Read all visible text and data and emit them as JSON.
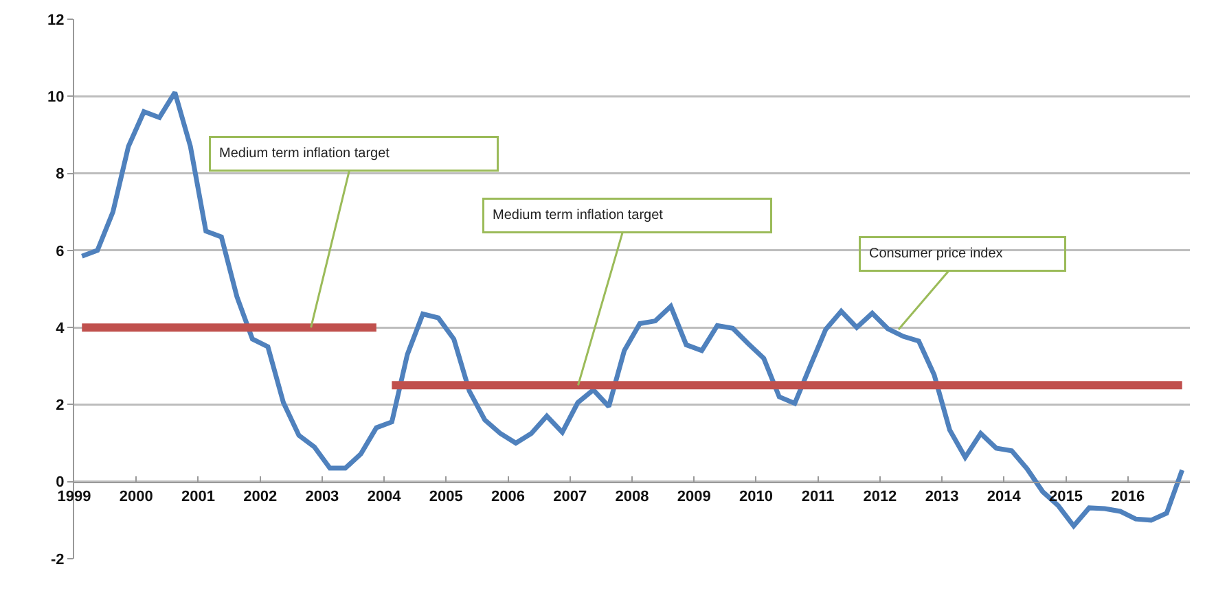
{
  "chart_data": {
    "type": "line",
    "xlim": [
      1999,
      2017
    ],
    "xticks": [
      1999,
      2000,
      2001,
      2002,
      2003,
      2004,
      2005,
      2006,
      2007,
      2008,
      2009,
      2010,
      2011,
      2012,
      2013,
      2014,
      2015,
      2016
    ],
    "ylim": [
      -2,
      12
    ],
    "yticks": [
      -2,
      0,
      2,
      4,
      6,
      8,
      10,
      12
    ],
    "grid": "y",
    "marker": "none",
    "line_style": "solid",
    "series": [
      {
        "color": "#4f81bd",
        "x": [
          1999.125,
          1999.375,
          1999.625,
          1999.875,
          2000.125,
          2000.375,
          2000.625,
          2000.875,
          2001.125,
          2001.375,
          2001.625,
          2001.875,
          2002.125,
          2002.375,
          2002.625,
          2002.875,
          2003.125,
          2003.375,
          2003.625,
          2003.875,
          2004.125,
          2004.375,
          2004.625,
          2004.875,
          2005.125,
          2005.375,
          2005.625,
          2005.875,
          2006.125,
          2006.375,
          2006.625,
          2006.875,
          2007.125,
          2007.375,
          2007.625,
          2007.875,
          2008.125,
          2008.375,
          2008.625,
          2008.875,
          2009.125,
          2009.375,
          2009.625,
          2009.875,
          2010.125,
          2010.375,
          2010.625,
          2010.875,
          2011.125,
          2011.375,
          2011.625,
          2011.875,
          2012.125,
          2012.375,
          2012.625,
          2012.875,
          2013.125,
          2013.375,
          2013.625,
          2013.875,
          2014.125,
          2014.375,
          2014.625,
          2014.875,
          2015.125,
          2015.375,
          2015.625,
          2015.875,
          2016.125,
          2016.375,
          2016.625,
          2016.875
        ],
        "values": [
          5.85,
          6.0,
          7.0,
          8.7,
          9.6,
          9.45,
          10.1,
          8.7,
          6.5,
          6.35,
          4.8,
          3.7,
          3.5,
          2.05,
          1.2,
          0.9,
          0.35,
          0.35,
          0.72,
          1.4,
          1.55,
          3.3,
          4.35,
          4.25,
          3.7,
          2.35,
          1.6,
          1.25,
          1.0,
          1.25,
          1.7,
          1.28,
          2.05,
          2.38,
          1.95,
          3.4,
          4.1,
          4.17,
          4.55,
          3.55,
          3.4,
          4.05,
          3.98,
          3.58,
          3.2,
          2.2,
          2.03,
          3.0,
          3.95,
          4.42,
          4.0,
          4.37,
          3.97,
          3.77,
          3.65,
          2.77,
          1.34,
          0.63,
          1.25,
          0.87,
          0.8,
          0.33,
          -0.26,
          -0.62,
          -1.15,
          -0.68,
          -0.7,
          -0.77,
          -0.97,
          -1.0,
          -0.82,
          0.3
        ]
      },
      {
        "color": "#c0504d",
        "x": [
          1999.125,
          2003.875
        ],
        "values": [
          4,
          4
        ]
      },
      {
        "color": "#c0504d",
        "x": [
          2004.125,
          2016.875
        ],
        "values": [
          2.5,
          2.5
        ]
      }
    ],
    "annotations": [
      {
        "text": "Medium term inflation target",
        "x": 2002.82,
        "y": 4
      },
      {
        "text": "Medium term inflation target",
        "x": 2007.13,
        "y": 2.5
      },
      {
        "text": "Consumer price index",
        "x": 2012.3,
        "y": 3.95
      }
    ]
  }
}
